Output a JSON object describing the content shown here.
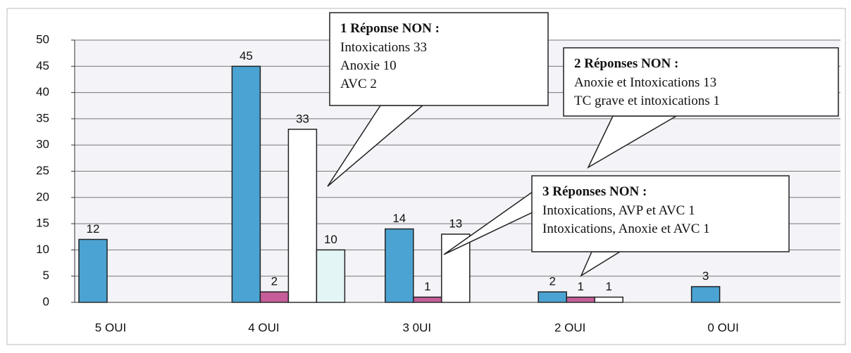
{
  "chart_data": {
    "type": "bar",
    "categories": [
      "5 OUI",
      "4 OUI",
      "3 0UI",
      "2 OUI",
      "0 OUI"
    ],
    "series": [
      {
        "color": "#4ba3d3",
        "values": [
          12,
          45,
          14,
          2,
          3
        ]
      },
      {
        "color": "#c45d98",
        "values": [
          null,
          2,
          1,
          1,
          null
        ]
      },
      {
        "color": "#ffffff",
        "values": [
          null,
          33,
          13,
          1,
          null
        ]
      },
      {
        "color": "#e3f5f5",
        "values": [
          null,
          10,
          null,
          null,
          null
        ]
      }
    ],
    "ylim": [
      0,
      50
    ],
    "yticks": [
      0,
      5,
      10,
      15,
      20,
      25,
      30,
      35,
      40,
      45,
      50
    ],
    "grid": true,
    "annotations": [
      {
        "title": "1 Réponse NON :",
        "lines": [
          "Intoxications 33",
          "Anoxie 10",
          "AVC 2"
        ]
      },
      {
        "title": "2 Réponses NON :",
        "lines": [
          "Anoxie et Intoxications 13",
          "TC grave et intoxications 1"
        ]
      },
      {
        "title": "3 Réponses NON :",
        "lines": [
          "Intoxications, AVP et AVC 1",
          "Intoxications, Anoxie et AVC 1"
        ]
      }
    ]
  }
}
